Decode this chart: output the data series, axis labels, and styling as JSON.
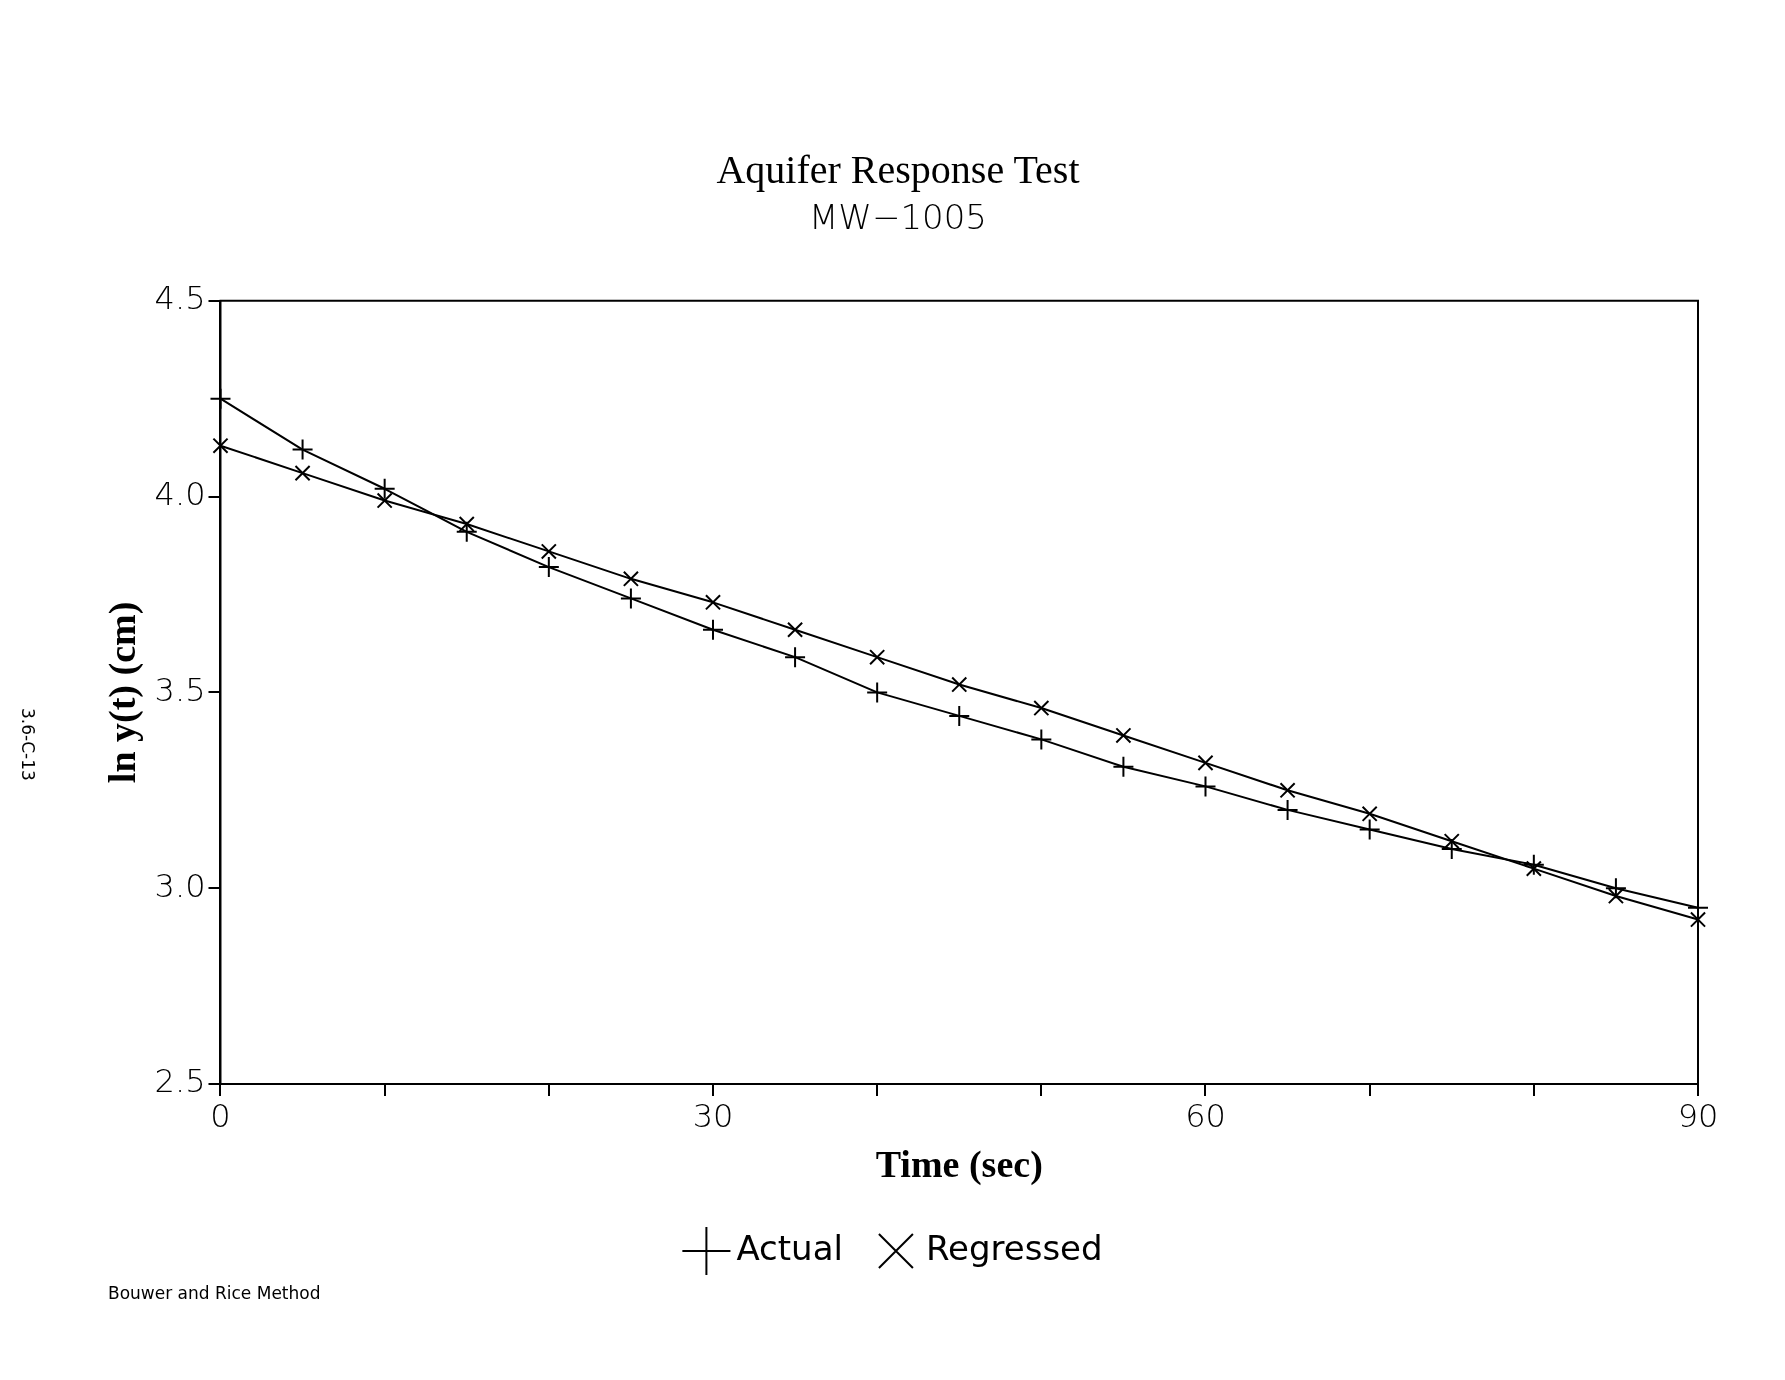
{
  "chart_data": {
    "type": "line",
    "title": "Aquifer Response Test",
    "subtitle": "MW−1005",
    "xlabel": "Time (sec)",
    "ylabel": "ln y(t) (cm)",
    "x": [
      0,
      5,
      10,
      15,
      20,
      25,
      30,
      35,
      40,
      45,
      50,
      55,
      60,
      65,
      70,
      75,
      80,
      85,
      90
    ],
    "series": [
      {
        "name": "Actual",
        "color": "#000000",
        "marker": "cross",
        "values": [
          4.25,
          4.12,
          4.02,
          3.91,
          3.82,
          3.74,
          3.66,
          3.59,
          3.5,
          3.44,
          3.38,
          3.31,
          3.26,
          3.2,
          3.15,
          3.1,
          3.06,
          3.0,
          2.95
        ]
      },
      {
        "name": "Regressed",
        "color": "#000000",
        "marker": "x",
        "values": [
          4.13,
          4.06,
          3.99,
          3.93,
          3.86,
          3.79,
          3.73,
          3.66,
          3.59,
          3.52,
          3.46,
          3.39,
          3.32,
          3.25,
          3.19,
          3.12,
          3.05,
          2.98,
          2.92
        ]
      }
    ],
    "xlim": [
      0,
      90
    ],
    "xticks": [
      0,
      {
        "value": 10,
        "label": null
      },
      {
        "value": 20,
        "label": null
      },
      30,
      {
        "value": 40,
        "label": null
      },
      {
        "value": 50,
        "label": null
      },
      60,
      {
        "value": 70,
        "label": null
      },
      {
        "value": 80,
        "label": null
      },
      90
    ],
    "ylim": [
      2.5,
      4.5
    ],
    "yticks": [
      {
        "value": 2.5,
        "label": "2.5"
      },
      {
        "value": 3,
        "label": "3.0"
      },
      {
        "value": 3.5,
        "label": "3.5"
      },
      {
        "value": 4,
        "label": "4.0"
      },
      {
        "value": 4.5,
        "label": "4.5"
      }
    ],
    "grid": false,
    "legend": "bottom",
    "line_style": "solid",
    "annotations": [
      "Bouwer and Rice Method",
      "3.6-C-13"
    ]
  }
}
